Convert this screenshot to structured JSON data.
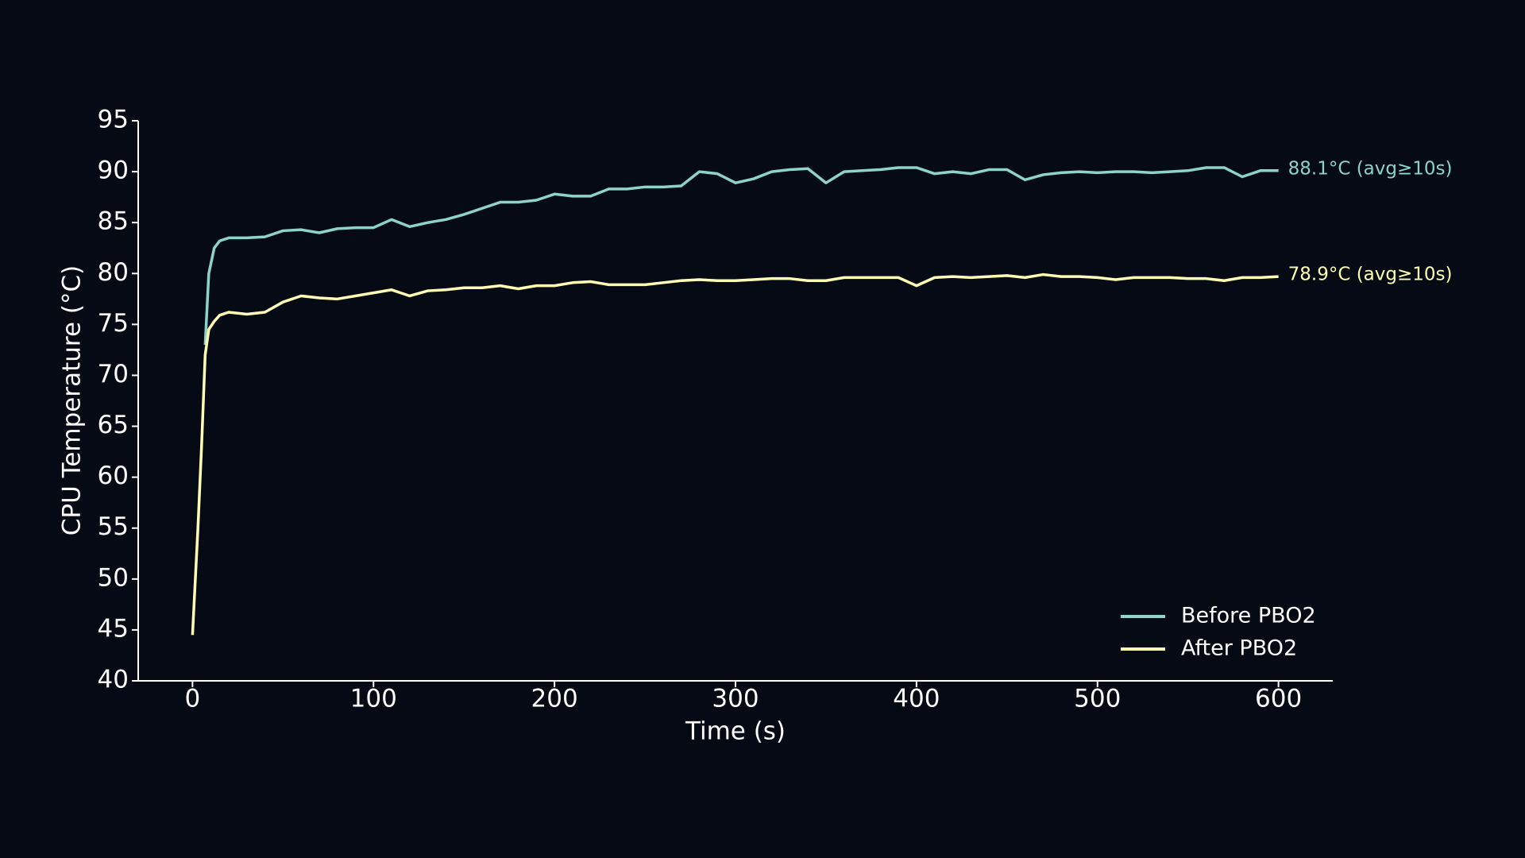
{
  "chart_data": {
    "type": "line",
    "xlabel": "Time (s)",
    "ylabel": "CPU Temperature (°C)",
    "x": [
      0,
      3,
      5,
      7,
      9,
      12,
      15,
      20,
      30,
      40,
      50,
      60,
      70,
      80,
      90,
      100,
      110,
      120,
      130,
      140,
      150,
      160,
      170,
      180,
      190,
      200,
      210,
      220,
      230,
      240,
      250,
      260,
      270,
      280,
      290,
      300,
      310,
      320,
      330,
      340,
      350,
      360,
      370,
      380,
      390,
      400,
      410,
      420,
      430,
      440,
      450,
      460,
      470,
      480,
      490,
      500,
      510,
      520,
      530,
      540,
      550,
      560,
      570,
      580,
      590,
      600
    ],
    "series": [
      {
        "name": "Before PBO2",
        "color": "#8dd3c7",
        "annotation": "88.1°C (avg≥10s)",
        "values": [
          null,
          null,
          null,
          73,
          80,
          82.5,
          83.2,
          83.5,
          83.5,
          83.6,
          84.2,
          84.3,
          84,
          84.4,
          84.5,
          84.5,
          85.3,
          84.6,
          85,
          85.3,
          85.8,
          86.4,
          87,
          87,
          87.2,
          87.8,
          87.6,
          87.6,
          88.3,
          88.3,
          88.5,
          88.5,
          88.6,
          90,
          89.8,
          88.9,
          89.3,
          90,
          90.2,
          90.3,
          88.9,
          90,
          90.1,
          90.2,
          90.4,
          90.4,
          89.8,
          90,
          89.8,
          90.2,
          90.2,
          89.2,
          89.7,
          89.9,
          90,
          89.9,
          90,
          90,
          89.9,
          90,
          90.1,
          90.4,
          90.4,
          89.5,
          90.1,
          90.1
        ]
      },
      {
        "name": "After PBO2",
        "color": "#ffffb3",
        "annotation": "78.9°C (avg≥10s)",
        "values": [
          44.5,
          55,
          63,
          72,
          74.5,
          75.3,
          75.9,
          76.2,
          76,
          76.2,
          77.2,
          77.8,
          77.6,
          77.5,
          77.8,
          78.1,
          78.4,
          77.8,
          78.3,
          78.4,
          78.6,
          78.6,
          78.8,
          78.5,
          78.8,
          78.8,
          79.1,
          79.2,
          78.9,
          78.9,
          78.9,
          79.1,
          79.3,
          79.4,
          79.3,
          79.3,
          79.4,
          79.5,
          79.5,
          79.3,
          79.3,
          79.6,
          79.6,
          79.6,
          79.6,
          78.8,
          79.6,
          79.7,
          79.6,
          79.7,
          79.8,
          79.6,
          79.9,
          79.7,
          79.7,
          79.6,
          79.4,
          79.6,
          79.6,
          79.6,
          79.5,
          79.5,
          79.3,
          79.6,
          79.6,
          79.7
        ]
      }
    ],
    "xlim": [
      -30,
      630
    ],
    "xticks": [
      0,
      100,
      200,
      300,
      400,
      500,
      600
    ],
    "ylim": [
      40,
      95
    ],
    "yticks": [
      40,
      45,
      50,
      55,
      60,
      65,
      70,
      75,
      80,
      85,
      90,
      95
    ],
    "grid": false,
    "legend": "lower right"
  }
}
